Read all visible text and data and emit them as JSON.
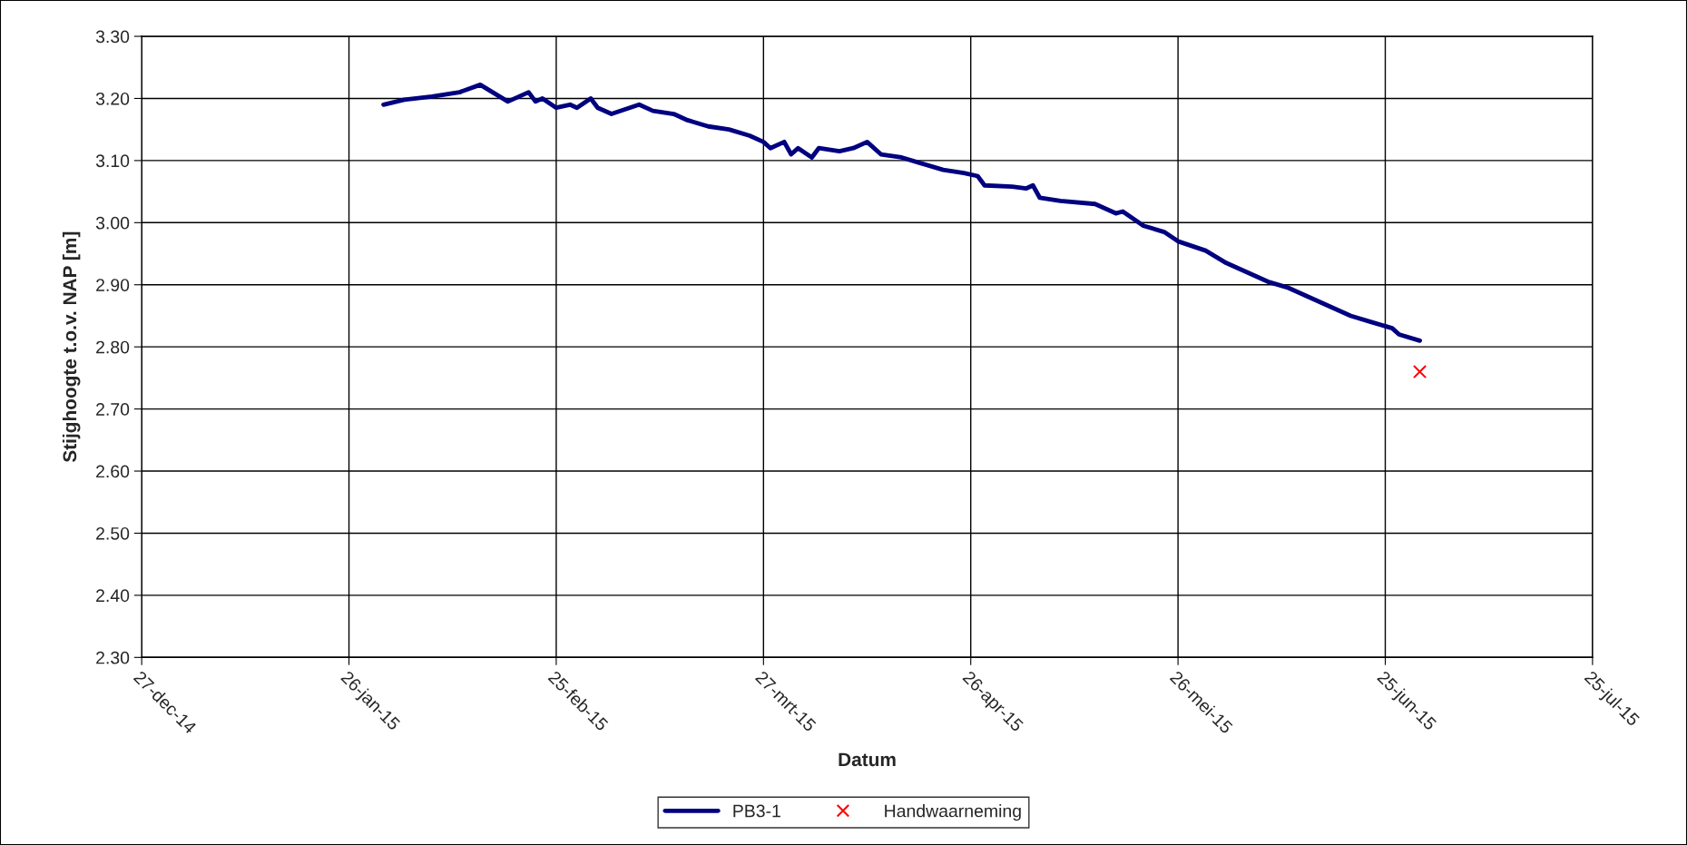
{
  "chart_data": {
    "type": "line",
    "xlabel": "Datum",
    "ylabel": "Stijghoogte t.o.v. NAP [m]",
    "xlim": [
      "2014-12-27",
      "2015-07-25"
    ],
    "ylim": [
      2.3,
      3.3
    ],
    "xticks": [
      {
        "value": "2014-12-27",
        "label": "27-dec-14"
      },
      {
        "value": "2015-01-26",
        "label": "26-jan-15"
      },
      {
        "value": "2015-02-25",
        "label": "25-feb-15"
      },
      {
        "value": "2015-03-27",
        "label": "27-mrt-15"
      },
      {
        "value": "2015-04-26",
        "label": "26-apr-15"
      },
      {
        "value": "2015-05-26",
        "label": "26-mei-15"
      },
      {
        "value": "2015-06-25",
        "label": "25-jun-15"
      },
      {
        "value": "2015-07-25",
        "label": "25-jul-15"
      }
    ],
    "yticks": [
      {
        "value": 2.3,
        "label": "2.30"
      },
      {
        "value": 2.4,
        "label": "2.40"
      },
      {
        "value": 2.5,
        "label": "2.50"
      },
      {
        "value": 2.6,
        "label": "2.60"
      },
      {
        "value": 2.7,
        "label": "2.70"
      },
      {
        "value": 2.8,
        "label": "2.80"
      },
      {
        "value": 2.9,
        "label": "2.90"
      },
      {
        "value": 3.0,
        "label": "3.00"
      },
      {
        "value": 3.1,
        "label": "3.10"
      },
      {
        "value": 3.2,
        "label": "3.20"
      },
      {
        "value": 3.3,
        "label": "3.30"
      }
    ],
    "grid": true,
    "legend": "bottom",
    "series": [
      {
        "name": "PB3-1",
        "color": "#000080",
        "marker": "none",
        "line_style": "solid",
        "x": [
          "2015-01-31",
          "2015-02-03",
          "2015-02-07",
          "2015-02-11",
          "2015-02-14",
          "2015-02-18",
          "2015-02-21",
          "2015-02-22",
          "2015-02-23",
          "2015-02-25",
          "2015-02-27",
          "2015-02-28",
          "2015-03-02",
          "2015-03-03",
          "2015-03-05",
          "2015-03-09",
          "2015-03-11",
          "2015-03-14",
          "2015-03-16",
          "2015-03-19",
          "2015-03-22",
          "2015-03-25",
          "2015-03-27",
          "2015-03-28",
          "2015-03-30",
          "2015-03-31",
          "2015-04-01",
          "2015-04-03",
          "2015-04-04",
          "2015-04-07",
          "2015-04-09",
          "2015-04-11",
          "2015-04-13",
          "2015-04-16",
          "2015-04-19",
          "2015-04-22",
          "2015-04-25",
          "2015-04-27",
          "2015-04-28",
          "2015-05-02",
          "2015-05-04",
          "2015-05-05",
          "2015-05-06",
          "2015-05-09",
          "2015-05-14",
          "2015-05-17",
          "2015-05-18",
          "2015-05-21",
          "2015-05-24",
          "2015-05-26",
          "2015-05-30",
          "2015-06-02",
          "2015-06-05",
          "2015-06-08",
          "2015-06-11",
          "2015-06-14",
          "2015-06-17",
          "2015-06-20",
          "2015-06-23",
          "2015-06-26",
          "2015-06-27",
          "2015-06-30"
        ],
        "values": [
          3.19,
          3.198,
          3.203,
          3.21,
          3.222,
          3.195,
          3.21,
          3.195,
          3.2,
          3.185,
          3.19,
          3.185,
          3.2,
          3.185,
          3.175,
          3.19,
          3.18,
          3.175,
          3.165,
          3.155,
          3.15,
          3.14,
          3.13,
          3.12,
          3.13,
          3.11,
          3.12,
          3.105,
          3.12,
          3.115,
          3.12,
          3.13,
          3.11,
          3.105,
          3.095,
          3.085,
          3.08,
          3.075,
          3.06,
          3.058,
          3.055,
          3.06,
          3.04,
          3.035,
          3.03,
          3.015,
          3.018,
          2.995,
          2.985,
          2.97,
          2.955,
          2.935,
          2.92,
          2.905,
          2.895,
          2.88,
          2.865,
          2.85,
          2.84,
          2.83,
          2.82,
          2.81
        ]
      },
      {
        "name": "Handwaarneming",
        "type": "scatter",
        "color": "#ff0000",
        "marker": "cross",
        "x": [
          "2015-06-30"
        ],
        "values": [
          2.76
        ]
      }
    ]
  }
}
